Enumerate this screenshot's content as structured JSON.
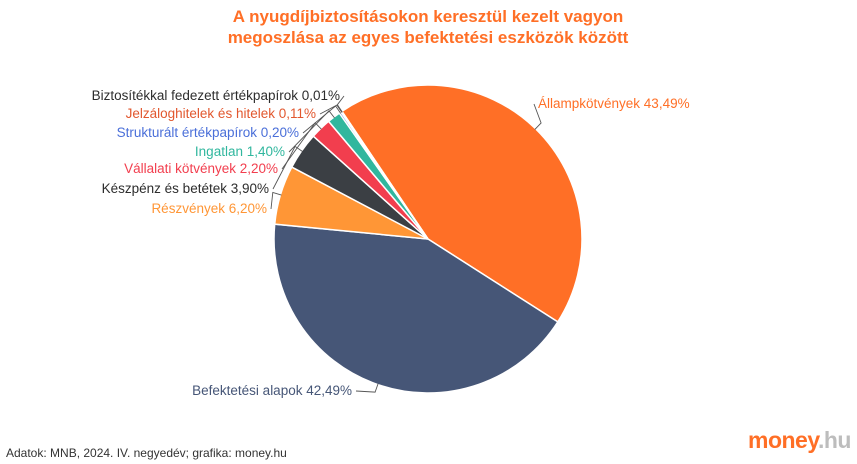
{
  "chart_data": {
    "type": "pie",
    "title": [
      "A nyugdíjbiztosításokon keresztül kezelt vagyon",
      "megoszlása az egyes befektetési eszközök között"
    ],
    "slices": [
      {
        "label": "Állampkötvények",
        "value": 43.49,
        "text": "Állampkötvények 43,49%",
        "color": "#ff6f26"
      },
      {
        "label": "Befektetési alapok",
        "value": 42.49,
        "text": "Befektetési alapok 42,49%",
        "color": "#465677"
      },
      {
        "label": "Részvények",
        "value": 6.2,
        "text": "Részvények 6,20%",
        "color": "#ff9636"
      },
      {
        "label": "Készpénz és betétek",
        "value": 3.9,
        "text": "Készpénz és betétek 3,90%",
        "color": "#3b3f44"
      },
      {
        "label": "Vállalati kötvények",
        "value": 2.2,
        "text": "Vállalati kötvények 2,20%",
        "color": "#f23e4e"
      },
      {
        "label": "Ingatlan",
        "value": 1.4,
        "text": "Ingatlan 1,40%",
        "color": "#31b79e"
      },
      {
        "label": "Strukturált értékpapírok",
        "value": 0.2,
        "text": "Strukturált értékpapírok 0,20%",
        "color": "#4a6fd9"
      },
      {
        "label": "Jelzáloghitelek és hitelek",
        "value": 0.11,
        "text": "Jelzáloghitelek és hitelek 0,11%",
        "color": "#e2572e"
      },
      {
        "label": "Biztosítékkal fedezett értékpapírok",
        "value": 0.01,
        "text": "Biztosítékkal fedezett értékpapírok 0,01%",
        "color": "#2f2f2f"
      }
    ]
  },
  "title_color": "#ff6f26",
  "footer": {
    "source": "Adatok: MNB, 2024. IV. negyedév; grafika: money.hu",
    "logo_main": "money",
    "logo_dot": ".hu",
    "logo_color": "#ff6f26"
  }
}
